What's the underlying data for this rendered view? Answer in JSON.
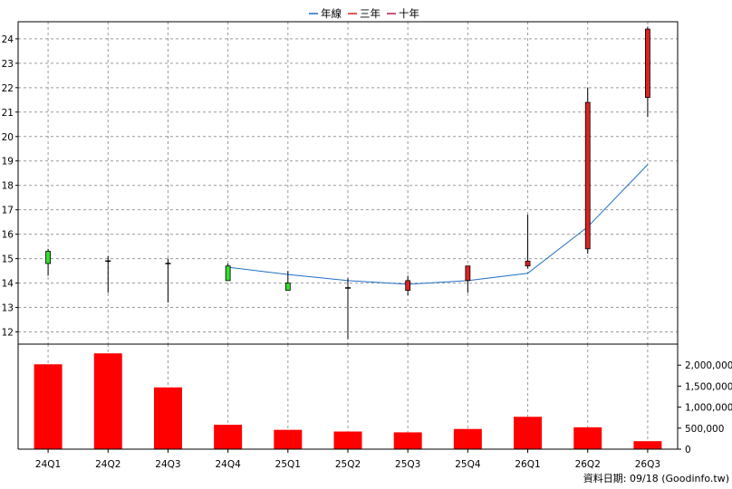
{
  "chart_data": {
    "type": "candlestick+bar",
    "legend": [
      {
        "label": "年線",
        "color": "#1f6fc5"
      },
      {
        "label": "三年",
        "color": "#e02020"
      },
      {
        "label": "十年",
        "color": "#b0204a"
      }
    ],
    "legend_placement": "top-center",
    "categories": [
      "24Q1",
      "24Q2",
      "24Q3",
      "24Q4",
      "25Q1",
      "25Q2",
      "25Q3",
      "25Q4",
      "26Q1",
      "26Q2",
      "26Q3"
    ],
    "price_axis": {
      "ylim": [
        11.5,
        24.7
      ],
      "ticks": [
        12,
        13,
        14,
        15,
        16,
        17,
        18,
        19,
        20,
        21,
        22,
        23,
        24
      ],
      "grid": true
    },
    "candles": [
      {
        "open": 14.8,
        "close": 15.3,
        "high": 15.4,
        "low": 14.3,
        "color": "green"
      },
      {
        "open": 14.9,
        "close": 14.9,
        "high": 15.1,
        "low": 13.6,
        "color": "black"
      },
      {
        "open": 14.8,
        "close": 14.8,
        "high": 15.0,
        "low": 13.2,
        "color": "black"
      },
      {
        "open": 14.7,
        "close": 14.1,
        "high": 14.8,
        "low": 14.1,
        "color": "green"
      },
      {
        "open": 14.0,
        "close": 13.7,
        "high": 14.5,
        "low": 13.7,
        "color": "green"
      },
      {
        "open": 13.8,
        "close": 13.8,
        "high": 14.2,
        "low": 11.7,
        "color": "black"
      },
      {
        "open": 13.7,
        "close": 14.1,
        "high": 14.3,
        "low": 13.5,
        "color": "red"
      },
      {
        "open": 14.1,
        "close": 14.7,
        "high": 14.7,
        "low": 13.6,
        "color": "red"
      },
      {
        "open": 14.7,
        "close": 14.9,
        "high": 16.8,
        "low": 14.6,
        "color": "red"
      },
      {
        "open": 15.4,
        "close": 21.4,
        "high": 22.0,
        "low": 15.2,
        "color": "red"
      },
      {
        "open": 21.6,
        "close": 24.4,
        "high": 24.5,
        "low": 20.8,
        "color": "red"
      }
    ],
    "series": [
      {
        "name": "年線",
        "color": "#1f6fc5",
        "values": [
          null,
          null,
          null,
          14.65,
          14.35,
          14.1,
          13.95,
          14.1,
          14.4,
          16.3,
          18.85
        ]
      }
    ],
    "volume_axis": {
      "ylim": [
        0,
        2500000
      ],
      "ticks": [
        0,
        500000,
        1000000,
        1500000,
        2000000
      ],
      "tick_labels": [
        "0",
        "500,000",
        "1,000,000",
        "1,500,000",
        "2,000,000"
      ]
    },
    "volume": [
      2020000,
      2280000,
      1470000,
      580000,
      460000,
      420000,
      400000,
      480000,
      770000,
      520000,
      190000
    ],
    "volume_color": "#ff0000",
    "footer_note": "資料日期: 09/18  (Goodinfo.tw)"
  }
}
